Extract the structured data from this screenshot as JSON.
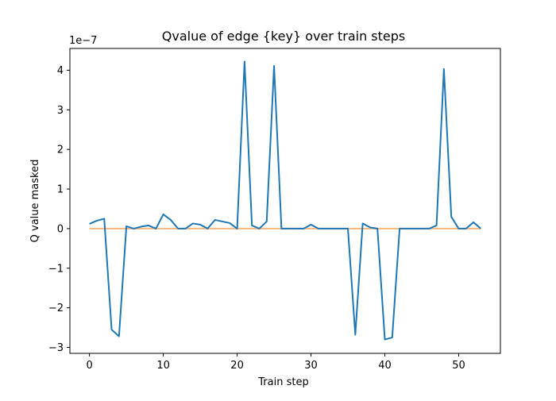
{
  "chart_data": {
    "type": "line",
    "title": "Qvalue of edge {key} over train steps",
    "xlabel": "Train step",
    "ylabel": "Q value masked",
    "y_offset_text": "1e−7",
    "xlim": [
      -2.65,
      55.65
    ],
    "ylim": [
      -3.15,
      4.55
    ],
    "xticks": [
      0,
      10,
      20,
      30,
      40,
      50
    ],
    "xtick_labels": [
      "0",
      "10",
      "20",
      "30",
      "40",
      "50"
    ],
    "yticks": [
      -3,
      -2,
      -1,
      0,
      1,
      2,
      3,
      4
    ],
    "ytick_labels": [
      "−3",
      "−2",
      "−1",
      "0",
      "1",
      "2",
      "3",
      "4"
    ],
    "grid": false,
    "series": [
      {
        "color": "#1f77b4",
        "x": [
          0,
          1,
          2,
          3,
          4,
          5,
          6,
          7,
          8,
          9,
          10,
          11,
          12,
          13,
          14,
          15,
          16,
          17,
          18,
          19,
          20,
          21,
          22,
          23,
          24,
          25,
          26,
          27,
          28,
          29,
          30,
          31,
          32,
          33,
          34,
          35,
          36,
          37,
          38,
          39,
          40,
          41,
          42,
          43,
          44,
          45,
          46,
          47,
          48,
          49,
          50,
          51,
          52,
          53
        ],
        "y": [
          0.12,
          0.2,
          0.25,
          -2.55,
          -2.72,
          0.06,
          0.0,
          0.05,
          0.08,
          0.0,
          0.36,
          0.22,
          0.0,
          0.0,
          0.13,
          0.1,
          0.0,
          0.22,
          0.18,
          0.14,
          0.0,
          4.22,
          0.08,
          0.0,
          0.18,
          4.11,
          0.0,
          0.0,
          0.0,
          0.0,
          0.1,
          0.0,
          0.0,
          0.0,
          0.0,
          0.0,
          -2.68,
          0.13,
          0.03,
          0.0,
          -2.8,
          -2.75,
          0.0,
          0.0,
          0.0,
          0.0,
          0.0,
          0.08,
          4.03,
          0.3,
          0.0,
          0.0,
          0.16,
          0.0
        ]
      },
      {
        "color": "#f5b67f",
        "x": [
          0,
          53
        ],
        "y": [
          0,
          0
        ]
      }
    ]
  }
}
